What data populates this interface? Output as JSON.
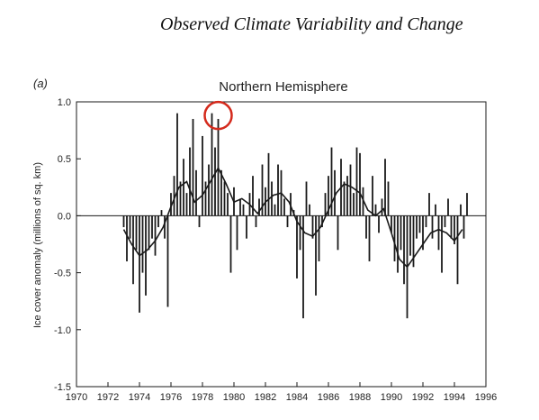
{
  "page": {
    "running_head": "Observed Climate Variability and Change",
    "panel_label": "(a)"
  },
  "colors": {
    "ink": "#1a1a1a",
    "highlight_circle": "#d42a1c"
  },
  "chart_data": {
    "type": "bar",
    "title": "Northern Hemisphere",
    "xlabel": "",
    "ylabel": "Ice cover anomaly (millions of sq. km)",
    "xlim": [
      1970,
      1996
    ],
    "ylim": [
      -1.5,
      1.0
    ],
    "x_ticks": [
      1970,
      1972,
      1974,
      1976,
      1978,
      1980,
      1982,
      1984,
      1986,
      1988,
      1990,
      1992,
      1994,
      1996
    ],
    "x_tick_labels": [
      "1970",
      "1972",
      "1974",
      "1976",
      "1978",
      "1980",
      "1982",
      "1984",
      "1986",
      "1988",
      "1990",
      "1992",
      "1994",
      "1996"
    ],
    "y_ticks": [
      -1.5,
      -1.0,
      -0.5,
      0.0,
      0.5,
      1.0
    ],
    "y_tick_labels": [
      "-1.5",
      "-1.0",
      "-0.5",
      "0.0",
      "0.5",
      "1.0"
    ],
    "grid": false,
    "annotations": [
      {
        "type": "circle",
        "x": 1979.0,
        "y": 0.88,
        "color": "#d42a1c"
      }
    ],
    "series": [
      {
        "kind": "bars",
        "x": [
          1973.0,
          1973.2,
          1973.4,
          1973.6,
          1973.8,
          1974.0,
          1974.2,
          1974.4,
          1974.6,
          1974.8,
          1975.0,
          1975.2,
          1975.4,
          1975.6,
          1975.8,
          1976.0,
          1976.2,
          1976.4,
          1976.6,
          1976.8,
          1977.0,
          1977.2,
          1977.4,
          1977.6,
          1977.8,
          1978.0,
          1978.2,
          1978.4,
          1978.6,
          1978.8,
          1979.0,
          1979.2,
          1979.4,
          1979.6,
          1979.8,
          1980.0,
          1980.2,
          1980.4,
          1980.6,
          1980.8,
          1981.0,
          1981.2,
          1981.4,
          1981.6,
          1981.8,
          1982.0,
          1982.2,
          1982.4,
          1982.6,
          1982.8,
          1983.0,
          1983.2,
          1983.4,
          1983.6,
          1983.8,
          1984.0,
          1984.2,
          1984.4,
          1984.6,
          1984.8,
          1985.0,
          1985.2,
          1985.4,
          1985.6,
          1985.8,
          1986.0,
          1986.2,
          1986.4,
          1986.6,
          1986.8,
          1987.0,
          1987.2,
          1987.4,
          1987.6,
          1987.8,
          1988.0,
          1988.2,
          1988.4,
          1988.6,
          1988.8,
          1989.0,
          1989.2,
          1989.4,
          1989.6,
          1989.8,
          1990.0,
          1990.2,
          1990.4,
          1990.6,
          1990.8,
          1991.0,
          1991.2,
          1991.4,
          1991.6,
          1991.8,
          1992.0,
          1992.2,
          1992.4,
          1992.6,
          1992.8,
          1993.0,
          1993.2,
          1993.4,
          1993.6,
          1993.8,
          1994.0,
          1994.2,
          1994.4,
          1994.6,
          1994.8
        ],
        "values": [
          -0.1,
          -0.4,
          -0.2,
          -0.6,
          -0.3,
          -0.85,
          -0.5,
          -0.7,
          -0.3,
          -0.2,
          -0.35,
          -0.1,
          0.05,
          -0.2,
          -0.8,
          0.2,
          0.35,
          0.9,
          0.3,
          0.5,
          0.2,
          0.6,
          0.85,
          0.4,
          -0.1,
          0.7,
          0.3,
          0.45,
          0.9,
          0.6,
          0.85,
          0.4,
          0.3,
          0.2,
          -0.5,
          0.25,
          -0.3,
          0.15,
          0.1,
          -0.2,
          0.2,
          0.35,
          -0.1,
          0.15,
          0.45,
          0.25,
          0.55,
          0.3,
          0.1,
          0.45,
          0.4,
          0.15,
          -0.1,
          0.2,
          0.05,
          -0.55,
          -0.3,
          -0.9,
          0.3,
          0.1,
          -0.2,
          -0.7,
          -0.4,
          -0.1,
          0.2,
          0.35,
          0.6,
          0.4,
          -0.3,
          0.5,
          0.3,
          0.35,
          0.45,
          0.2,
          0.6,
          0.55,
          0.25,
          -0.2,
          -0.4,
          0.35,
          0.1,
          -0.15,
          0.15,
          0.5,
          0.3,
          -0.15,
          -0.4,
          -0.5,
          -0.3,
          -0.6,
          -0.9,
          -0.35,
          -0.45,
          -0.2,
          -0.15,
          -0.3,
          -0.1,
          0.2,
          -0.2,
          0.1,
          -0.3,
          -0.5,
          -0.1,
          0.15,
          -0.2,
          -0.25,
          -0.6,
          0.1,
          -0.2,
          0.2
        ]
      },
      {
        "kind": "smoothed_line",
        "x": [
          1973.0,
          1973.5,
          1974.0,
          1974.5,
          1975.0,
          1975.5,
          1976.0,
          1976.5,
          1977.0,
          1977.5,
          1978.0,
          1978.5,
          1979.0,
          1979.5,
          1980.0,
          1980.5,
          1981.0,
          1981.5,
          1982.0,
          1982.5,
          1983.0,
          1983.5,
          1984.0,
          1984.5,
          1985.0,
          1985.5,
          1986.0,
          1986.5,
          1987.0,
          1987.5,
          1988.0,
          1988.5,
          1989.0,
          1989.5,
          1990.0,
          1990.5,
          1991.0,
          1991.5,
          1992.0,
          1992.5,
          1993.0,
          1993.5,
          1994.0,
          1994.5
        ],
        "values": [
          -0.12,
          -0.25,
          -0.35,
          -0.3,
          -0.22,
          -0.1,
          0.08,
          0.25,
          0.3,
          0.12,
          0.18,
          0.3,
          0.42,
          0.28,
          0.12,
          0.15,
          0.1,
          0.02,
          0.12,
          0.18,
          0.2,
          0.12,
          -0.05,
          -0.15,
          -0.18,
          -0.1,
          0.05,
          0.2,
          0.28,
          0.25,
          0.2,
          0.05,
          0.0,
          0.06,
          -0.15,
          -0.38,
          -0.45,
          -0.35,
          -0.25,
          -0.15,
          -0.12,
          -0.15,
          -0.22,
          -0.12
        ]
      }
    ]
  }
}
